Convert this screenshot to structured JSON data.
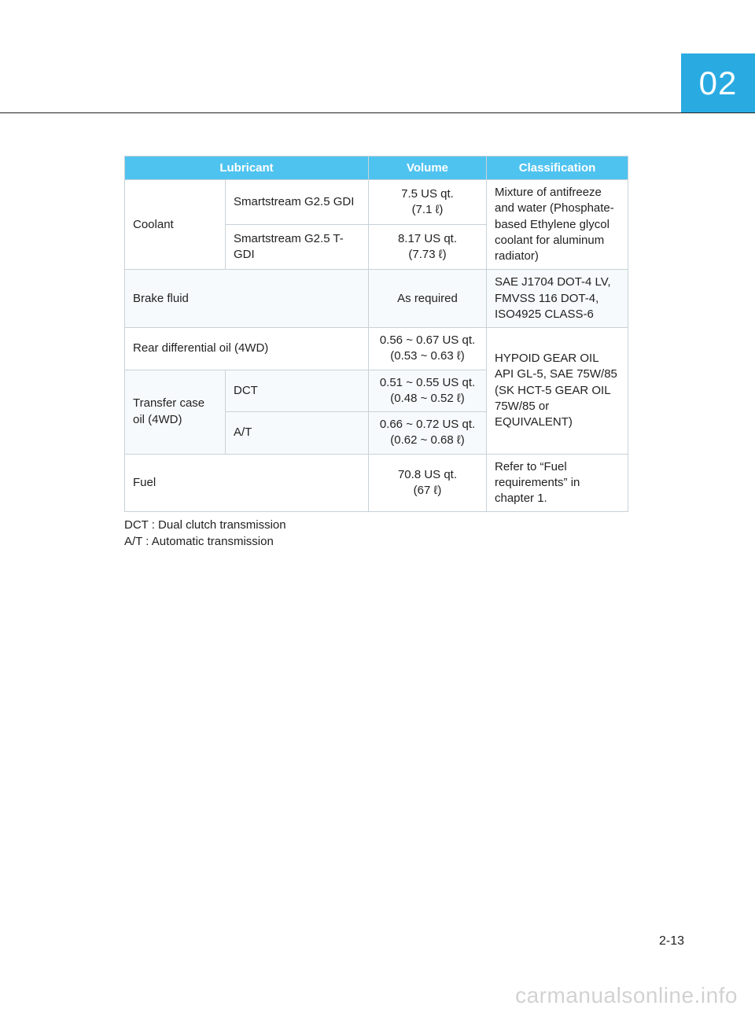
{
  "chapter_badge": "02",
  "page_number": "2-13",
  "watermark": "carmanualsonline.info",
  "table": {
    "headers": {
      "lubricant": "Lubricant",
      "volume": "Volume",
      "classification": "Classification"
    },
    "coolant": {
      "label": "Coolant",
      "variants": {
        "gdi": {
          "name": "Smartstream G2.5 GDI",
          "vol1": "7.5 US qt.",
          "vol2": "(7.1 ℓ)"
        },
        "tgdi": {
          "name": "Smartstream G2.5 T-GDI",
          "vol1": "8.17 US qt.",
          "vol2": "(7.73 ℓ)"
        }
      },
      "classification": "Mixture of antifreeze and water (Phosphate-based Ethylene glycol coolant for aluminum radiator)"
    },
    "brake": {
      "label": "Brake fluid",
      "volume": "As required",
      "classification": "SAE J1704 DOT-4 LV, FMVSS 116 DOT-4, ISO4925 CLASS-6"
    },
    "reardiff": {
      "label": "Rear differential oil (4WD)",
      "vol1": "0.56 ~ 0.67 US qt.",
      "vol2": "(0.53 ~ 0.63 ℓ)"
    },
    "transfer": {
      "label": "Transfer case oil (4WD)",
      "dct": {
        "name": "DCT",
        "vol1": "0.51 ~ 0.55 US qt.",
        "vol2": "(0.48 ~ 0.52 ℓ)"
      },
      "at": {
        "name": "A/T",
        "vol1": "0.66 ~ 0.72 US qt.",
        "vol2": "(0.62 ~ 0.68 ℓ)"
      },
      "classification": "HYPOID GEAR OIL API GL-5, SAE 75W/85 (SK HCT-5 GEAR OIL 75W/85 or EQUIVALENT)"
    },
    "fuel": {
      "label": "Fuel",
      "vol1": "70.8 US qt.",
      "vol2": "(67 ℓ)",
      "classification": "Refer to “Fuel requirements” in chapter 1."
    }
  },
  "footnotes": {
    "dct": "DCT : Dual clutch transmission",
    "at": "A/T : Automatic transmission"
  },
  "colors": {
    "badge_bg": "#29abe2",
    "header_bg": "#4fc3f0",
    "border": "#c8d2d8",
    "alt_row": "#f7fafc",
    "text": "#222222"
  }
}
